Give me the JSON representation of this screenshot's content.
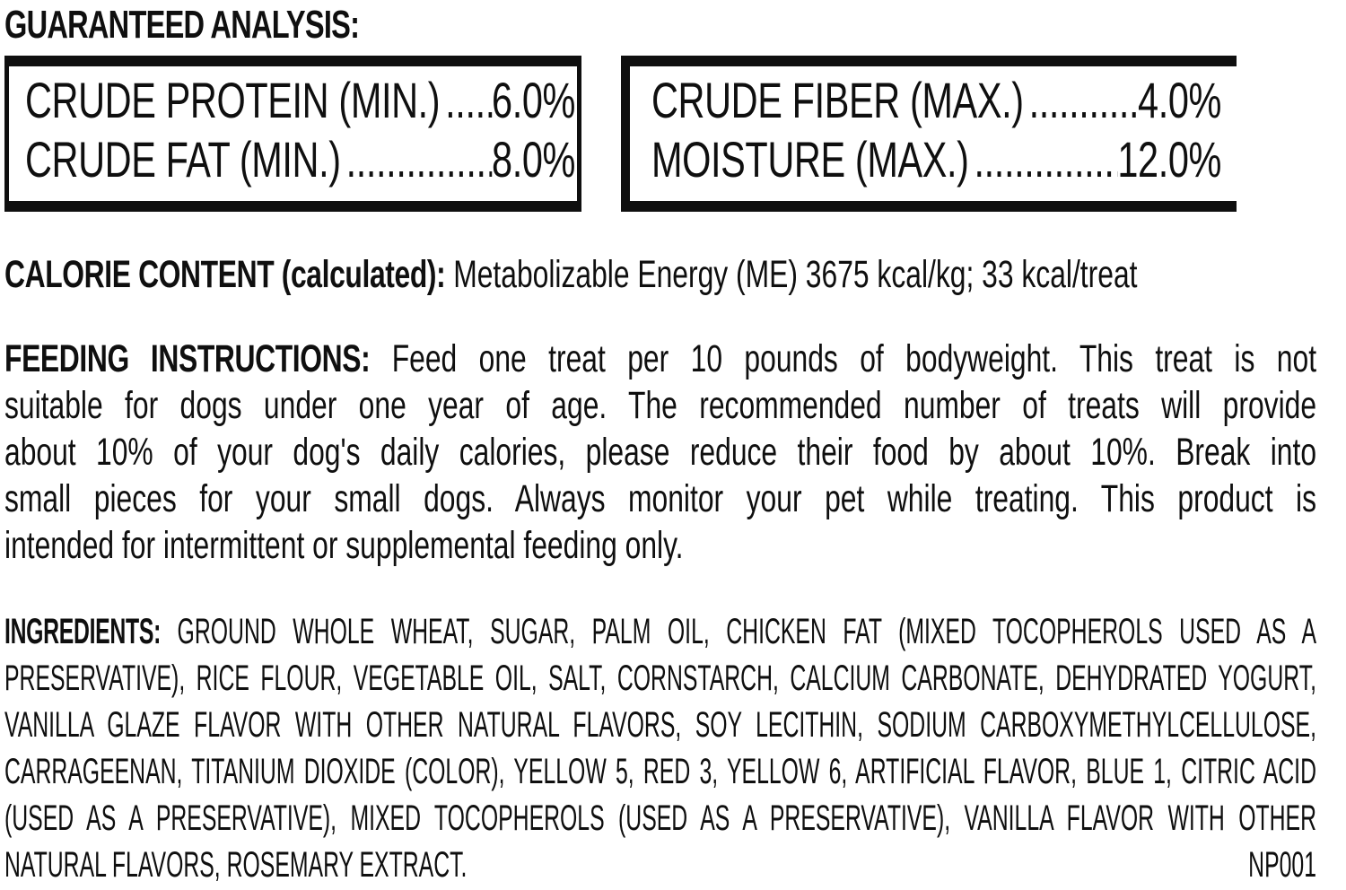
{
  "page": {
    "background_color": "#ffffff",
    "text_color": "#0f0f0f"
  },
  "guaranteed_analysis": {
    "title": "GUARANTEED ANALYSIS:",
    "leader_dots": "..................................................",
    "left_rows": [
      {
        "label": "CRUDE PROTEIN (MIN.)",
        "value": "6.0%"
      },
      {
        "label": "CRUDE FAT (MIN.)",
        "value": "8.0%"
      }
    ],
    "right_rows": [
      {
        "label": "CRUDE FIBER (MAX.)",
        "value": "4.0%"
      },
      {
        "label": "MOISTURE (MAX.)",
        "value": "12.0%"
      }
    ]
  },
  "calorie_content": {
    "lead": "CALORIE CONTENT (calculated):",
    "text": " Metabolizable Energy (ME) 3675 kcal/kg; 33 kcal/treat"
  },
  "feeding_instructions": {
    "lead": "FEEDING INSTRUCTIONS:",
    "line1_rest": " Feed one treat per 10 pounds of bodyweight. This treat is not",
    "lines": [
      "suitable for dogs under one year of age. The recommended number of treats will provide",
      "about 10% of your dog's daily calories, please reduce their food by about 10%. Break into",
      "small pieces for your small dogs. Always monitor your pet while treating. This product is"
    ],
    "last_line": "intended for intermittent or supplemental feeding only."
  },
  "ingredients": {
    "lead": "INGREDIENTS:",
    "line1_rest": " GROUND WHOLE WHEAT, SUGAR, PALM OIL, CHICKEN FAT (MIXED TOCOPHEROLS USED AS A",
    "lines": [
      "PRESERVATIVE), RICE FLOUR, VEGETABLE OIL, SALT, CORNSTARCH, CALCIUM CARBONATE, DEHYDRATED YOGURT,",
      "VANILLA GLAZE FLAVOR WITH OTHER NATURAL FLAVORS, SOY LECITHIN, SODIUM CARBOXYMETHYLCELLULOSE,",
      "CARRAGEENAN, TITANIUM DIOXIDE (COLOR), YELLOW 5, RED 3, YELLOW 6, ARTIFICIAL FLAVOR, BLUE 1, CITRIC ACID",
      "(USED AS A PRESERVATIVE), MIXED TOCOPHEROLS (USED AS A PRESERVATIVE), VANILLA FLAVOR WITH OTHER"
    ],
    "last_line": "NATURAL FLAVORS, ROSEMARY EXTRACT.",
    "code": "NP001"
  }
}
